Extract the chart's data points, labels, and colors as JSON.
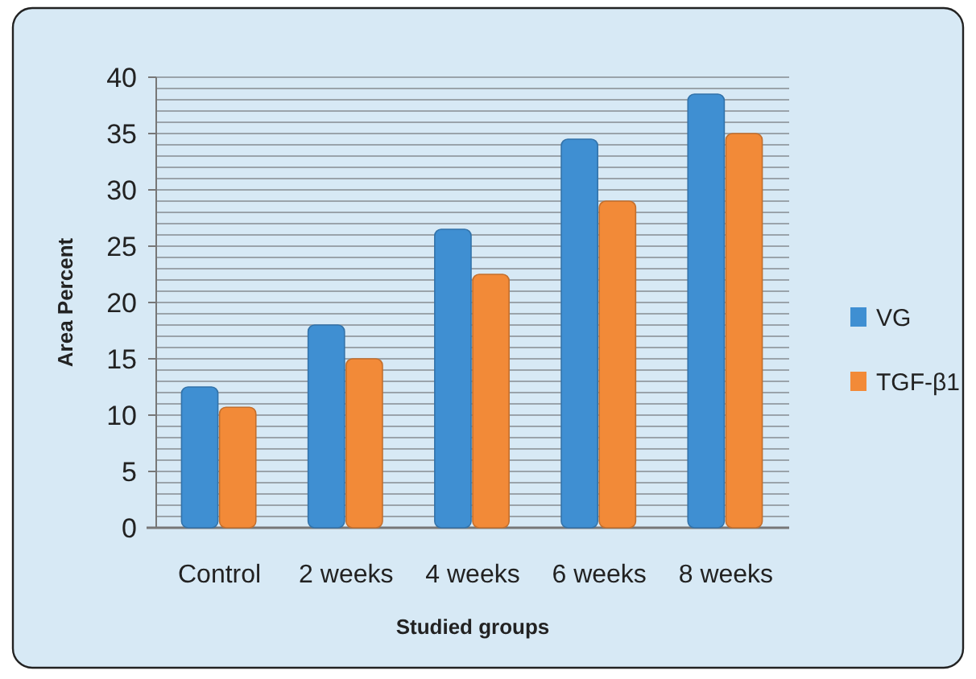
{
  "chart_data": {
    "type": "bar",
    "xlabel": "Studied groups",
    "ylabel": "Area Percent",
    "categories": [
      "Control",
      "2 weeks",
      "4 weeks",
      "6 weeks",
      "8 weeks"
    ],
    "series": [
      {
        "name": "VG",
        "color": "#3f8fd2",
        "values": [
          12.5,
          18,
          26.5,
          34.5,
          38.5
        ]
      },
      {
        "name": "TGF-β1",
        "color": "#f28a38",
        "values": [
          10.7,
          15,
          22.5,
          29,
          35
        ]
      }
    ],
    "ylim": [
      0,
      40
    ],
    "yticks": [
      0,
      {
        "value": 1,
        "label": null
      },
      {
        "value": 2,
        "label": null
      },
      {
        "value": 3,
        "label": null
      },
      {
        "value": 4,
        "label": null
      },
      5,
      {
        "value": 6,
        "label": null
      },
      {
        "value": 7,
        "label": null
      },
      {
        "value": 8,
        "label": null
      },
      {
        "value": 9,
        "label": null
      },
      10,
      {
        "value": 11,
        "label": null
      },
      {
        "value": 12,
        "label": null
      },
      {
        "value": 13,
        "label": null
      },
      {
        "value": 14,
        "label": null
      },
      15,
      {
        "value": 16,
        "label": null
      },
      {
        "value": 17,
        "label": null
      },
      {
        "value": 18,
        "label": null
      },
      {
        "value": 19,
        "label": null
      },
      20,
      {
        "value": 21,
        "label": null
      },
      {
        "value": 22,
        "label": null
      },
      {
        "value": 23,
        "label": null
      },
      {
        "value": 24,
        "label": null
      },
      25,
      {
        "value": 26,
        "label": null
      },
      {
        "value": 27,
        "label": null
      },
      {
        "value": 28,
        "label": null
      },
      {
        "value": 29,
        "label": null
      },
      30,
      {
        "value": 31,
        "label": null
      },
      {
        "value": 32,
        "label": null
      },
      {
        "value": 33,
        "label": null
      },
      {
        "value": 34,
        "label": null
      },
      35,
      {
        "value": 36,
        "label": null
      },
      {
        "value": 37,
        "label": null
      },
      {
        "value": 38,
        "label": null
      },
      {
        "value": 39,
        "label": null
      },
      40
    ],
    "grid": "y",
    "legend": "right"
  }
}
